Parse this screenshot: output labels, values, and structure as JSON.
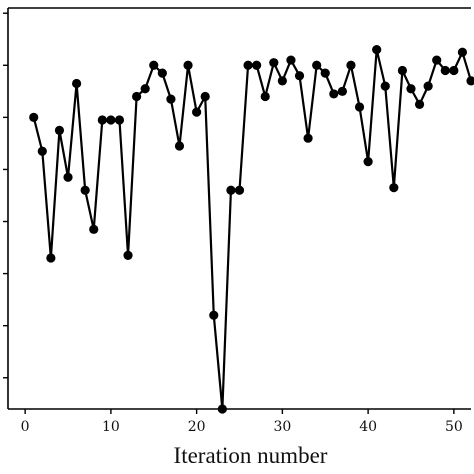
{
  "chart_data": {
    "type": "line",
    "xlabel": "Iteration number",
    "ylabel": "",
    "xlim": [
      -2,
      52
    ],
    "ylim": [
      0.4,
      8.1
    ],
    "x_ticks": [
      0,
      10,
      20,
      30,
      40,
      50
    ],
    "x_tick_labels": [
      "0",
      "10",
      "20",
      "30",
      "40",
      "50"
    ],
    "y_ticks": [
      1,
      2,
      3,
      4,
      5,
      6,
      7,
      8
    ],
    "grid": false,
    "legend": "none",
    "series": [
      {
        "color": "#000000",
        "marker": "circle",
        "points": [
          [
            1,
            6.0
          ],
          [
            2,
            5.35
          ],
          [
            3,
            3.3
          ],
          [
            4,
            5.75
          ],
          [
            5,
            4.85
          ],
          [
            6,
            6.65
          ],
          [
            7,
            4.6
          ],
          [
            8,
            3.85
          ],
          [
            9,
            5.95
          ],
          [
            10,
            5.95
          ],
          [
            11,
            5.95
          ],
          [
            12,
            3.35
          ],
          [
            13,
            6.4
          ],
          [
            14,
            6.55
          ],
          [
            15,
            7.0
          ],
          [
            16,
            6.85
          ],
          [
            17,
            6.35
          ],
          [
            18,
            5.45
          ],
          [
            19,
            7.0
          ],
          [
            20,
            6.1
          ],
          [
            21,
            6.4
          ],
          [
            22,
            2.2
          ],
          [
            23,
            0.4
          ],
          [
            24,
            4.6
          ],
          [
            25,
            4.6
          ],
          [
            26,
            7.0
          ],
          [
            27,
            7.0
          ],
          [
            28,
            6.4
          ],
          [
            29,
            7.05
          ],
          [
            30,
            6.7
          ],
          [
            31,
            7.1
          ],
          [
            32,
            6.8
          ],
          [
            33,
            5.6
          ],
          [
            34,
            7.0
          ],
          [
            35,
            6.85
          ],
          [
            36,
            6.45
          ],
          [
            37,
            6.5
          ],
          [
            38,
            7.0
          ],
          [
            39,
            6.2
          ],
          [
            40,
            5.15
          ],
          [
            41,
            7.3
          ],
          [
            42,
            6.6
          ],
          [
            43,
            4.65
          ],
          [
            44,
            6.9
          ],
          [
            45,
            6.55
          ],
          [
            46,
            6.25
          ],
          [
            47,
            6.6
          ],
          [
            48,
            7.1
          ],
          [
            49,
            6.9
          ],
          [
            50,
            6.9
          ],
          [
            51,
            7.25
          ],
          [
            52,
            6.7
          ]
        ]
      }
    ]
  }
}
